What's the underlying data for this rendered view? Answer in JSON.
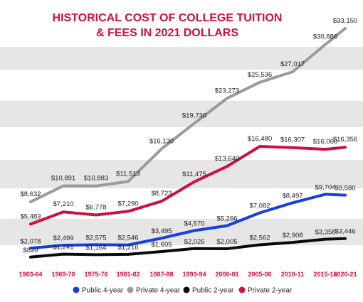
{
  "chart_data": {
    "type": "line",
    "title_line1": "HISTORICAL COST OF COLLEGE TUITION",
    "title_line2": "& FEES IN 2021 DOLLARS",
    "categories": [
      "1963-64",
      "1969-70",
      "1975-76",
      "1981-82",
      "1987-88",
      "1993-94",
      "2000-01",
      "2005-06",
      "2010-11",
      "2015-16",
      "2020-21"
    ],
    "series": [
      {
        "name": "Public 4-year",
        "color": "#1a3de0",
        "values": [
          2078,
          2499,
          2575,
          2546,
          3495,
          4570,
          5266,
          7082,
          8497,
          9704,
          9580
        ],
        "labels": [
          "$2,078",
          "$2,499",
          "$2,575",
          "$2,546",
          "$3,495",
          "$4,570",
          "$5,266",
          "$7,082",
          "$8,497",
          "$9,704",
          "$9,580"
        ]
      },
      {
        "name": "Private 4-year",
        "color": "#9b9b9b",
        "values": [
          8632,
          10891,
          10883,
          11513,
          16130,
          19730,
          23273,
          25536,
          27017,
          30886,
          33150
        ],
        "labels": [
          "$8,632",
          "$10,891",
          "$10,883",
          "$11,513",
          "$16,130",
          "$19,730",
          "$23,273",
          "$25,536",
          "$27,017",
          "$30,886",
          "$33,150"
        ]
      },
      {
        "name": "Public 2-year",
        "color": "#0a0a0a",
        "values": [
          820,
          1241,
          1164,
          1216,
          1605,
          2026,
          2005,
          2562,
          2908,
          3358,
          3446
        ],
        "labels": [
          "$820",
          "$1,241",
          "$1,164",
          "$1,216",
          "$1,605",
          "$2,026",
          "$2,005",
          "$2,562",
          "$2,908",
          "$3,358",
          "$3,446"
        ]
      },
      {
        "name": "Private 2-year",
        "color": "#d0103c",
        "values": [
          5483,
          7210,
          6778,
          7290,
          8723,
          11475,
          13640,
          16480,
          16307,
          16060,
          16356
        ],
        "labels": [
          "$5,483",
          "$7,210",
          "$6,778",
          "$7,290",
          "$8,723",
          "$11,475",
          "$13,640",
          "$16,480",
          "$16,307",
          "$16,060",
          "$16,356"
        ]
      }
    ],
    "legend_position": "bottom",
    "grid": "alternating horizontal bands",
    "ylim": [
      0,
      36000
    ],
    "colors": {
      "title": "#d0103c",
      "x_tick": "#d0103c",
      "band": "#e6e6e6"
    }
  }
}
